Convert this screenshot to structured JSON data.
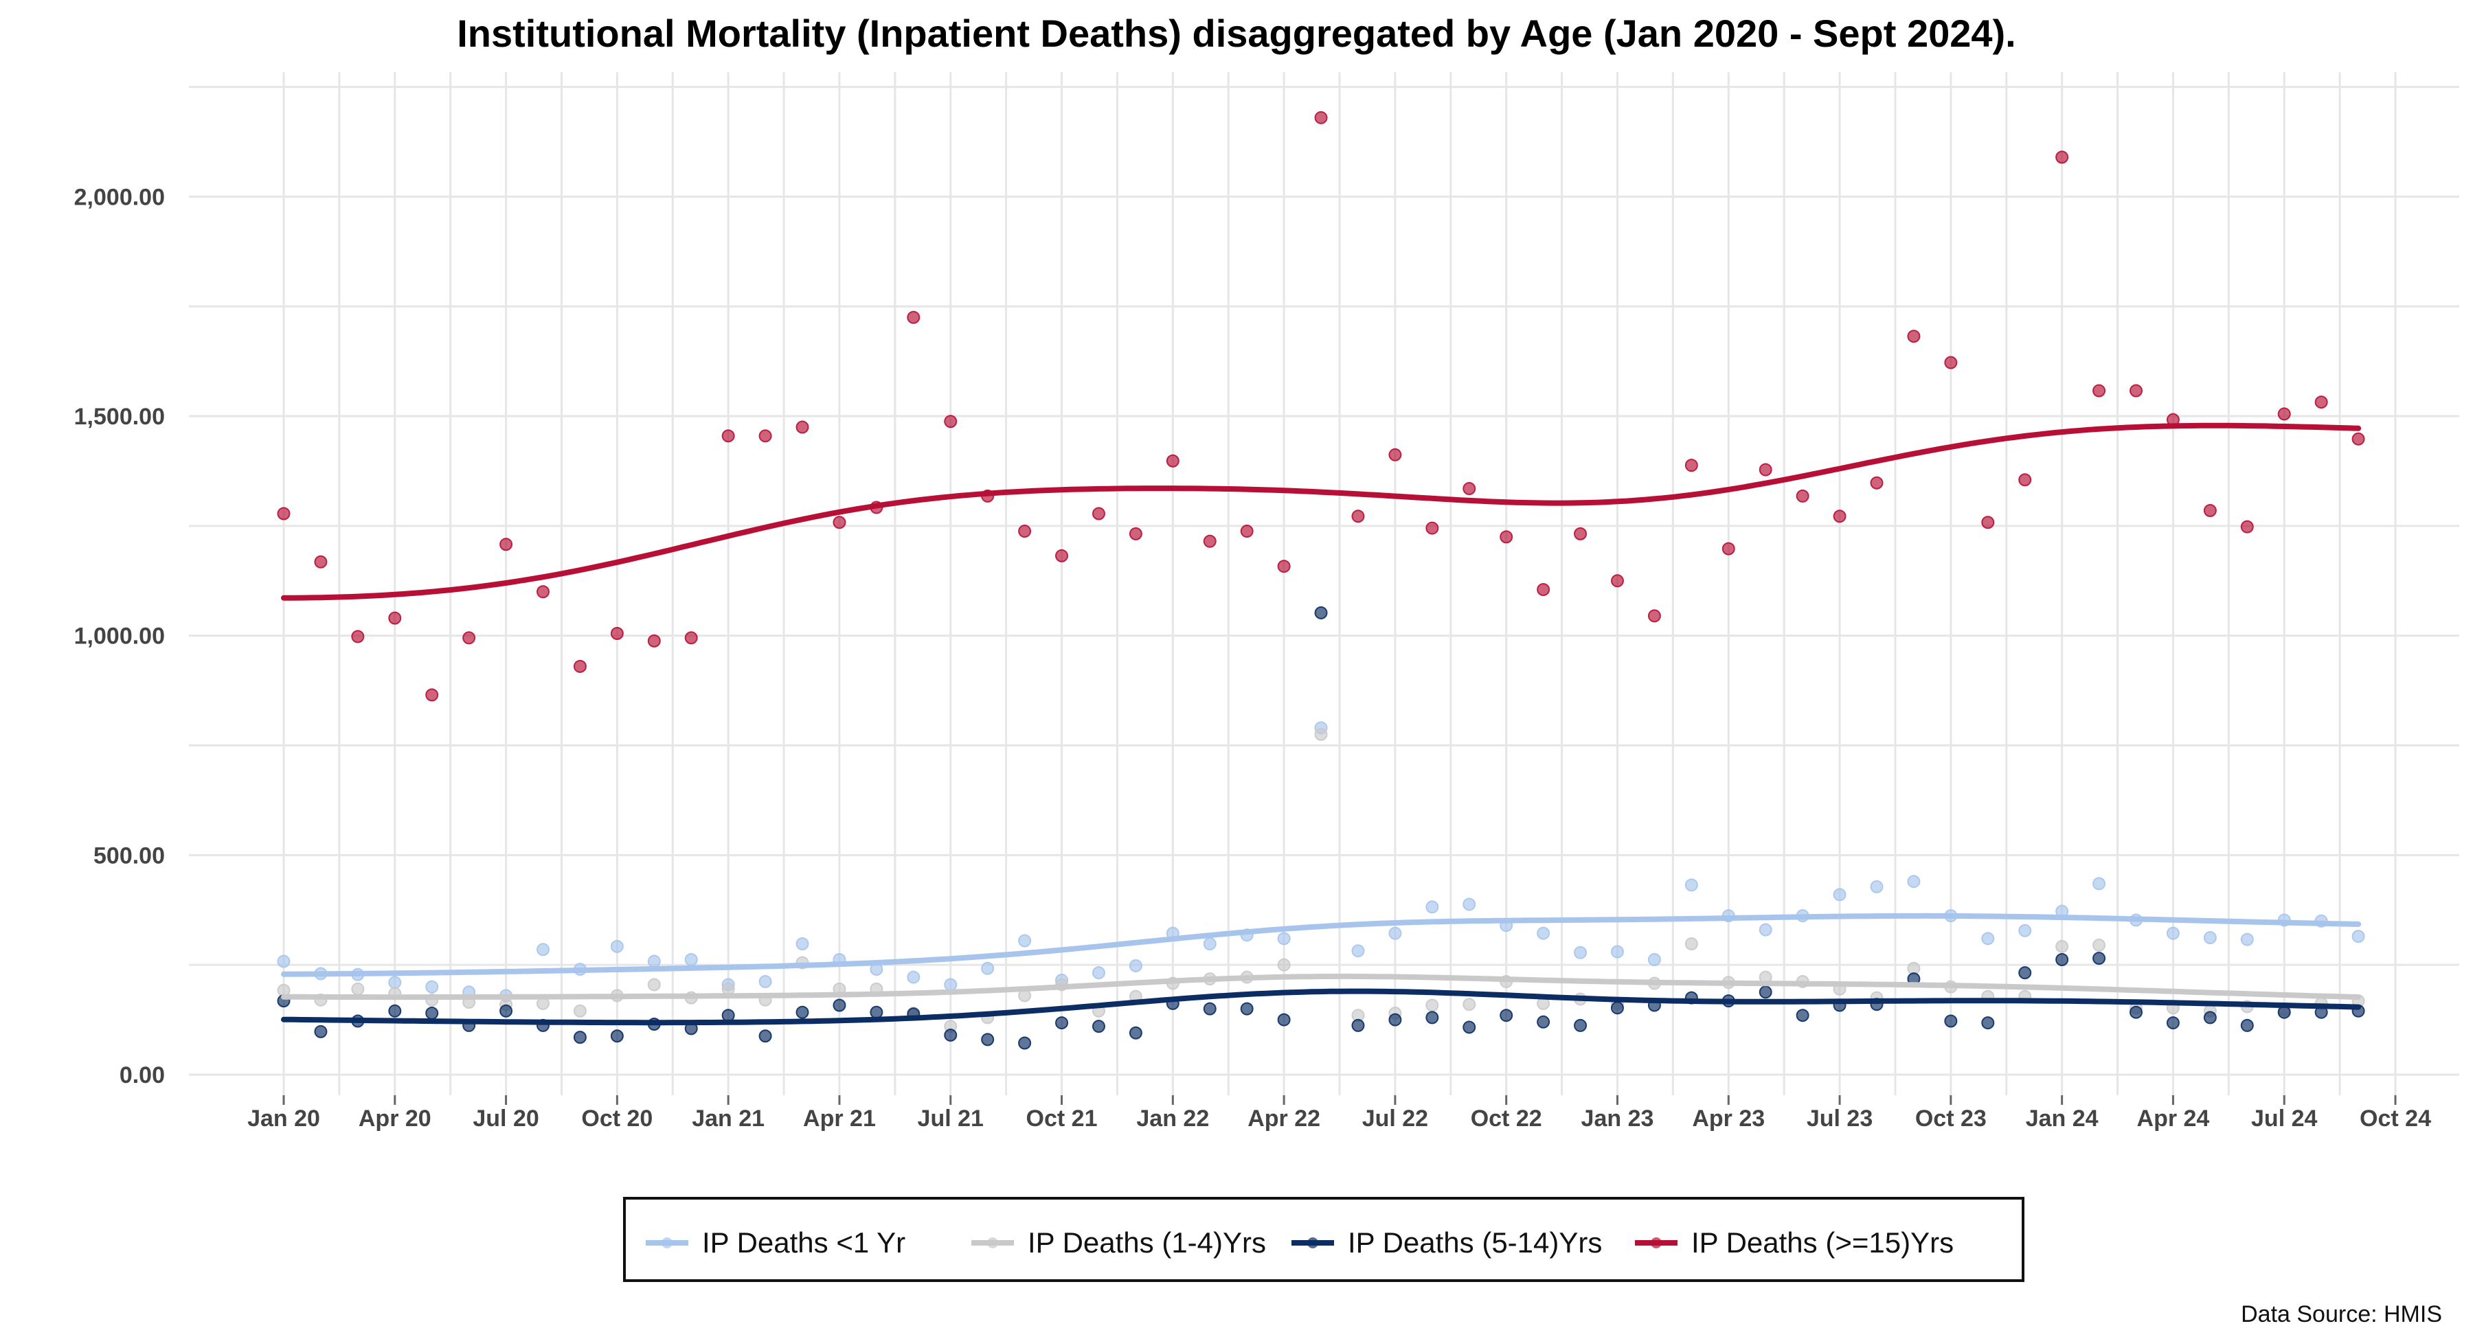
{
  "chart_data": {
    "type": "scatter",
    "title": "Institutional Mortality (Inpatient Deaths) disaggregated by Age (Jan 2020 - Sept 2024).",
    "source_note": "Data Source: HMIS",
    "xlabel": "",
    "ylabel": "",
    "x_start": "2020-01",
    "x_ticks": [
      "Jan 20",
      "Apr 20",
      "Jul 20",
      "Oct 20",
      "Jan 21",
      "Apr 21",
      "Jul 21",
      "Oct 21",
      "Jan 22",
      "Apr 22",
      "Jul 22",
      "Oct 22",
      "Jan 23",
      "Apr 23",
      "Jul 23",
      "Oct 23",
      "Jan 24",
      "Apr 24",
      "Jul 24",
      "Oct 24"
    ],
    "ylim": [
      0,
      2250
    ],
    "y_ticks": [
      0,
      500,
      1000,
      1500,
      2000
    ],
    "y_tick_labels": [
      "0.00",
      "500.00",
      "1,000.00",
      "1,500.00",
      "2,000.00"
    ],
    "grid": true,
    "legend_position": "bottom",
    "smooth_trend_lines": true,
    "series": [
      {
        "name": "IP Deaths <1 Yr",
        "color": "#a7c4ec",
        "values": [
          258,
          230,
          228,
          210,
          200,
          188,
          180,
          285,
          240,
          292,
          258,
          262,
          205,
          212,
          298,
          262,
          240,
          222,
          205,
          242,
          305,
          215,
          232,
          248,
          322,
          298,
          318,
          310,
          790,
          282,
          322,
          382,
          388,
          340,
          322,
          278,
          280,
          262,
          432,
          362,
          330,
          362,
          410,
          428,
          440,
          362,
          310,
          328,
          372,
          435,
          352,
          322,
          312,
          308,
          352,
          350,
          315
        ]
      },
      {
        "name": "IP Deaths (1-4)Yrs",
        "color": "#c9c9c9",
        "values": [
          192,
          170,
          195,
          185,
          170,
          165,
          160,
          162,
          145,
          180,
          205,
          175,
          195,
          170,
          255,
          195,
          195,
          140,
          110,
          130,
          180,
          205,
          145,
          178,
          208,
          218,
          222,
          250,
          775,
          135,
          140,
          158,
          160,
          212,
          162,
          172,
          162,
          208,
          298,
          210,
          222,
          212,
          195,
          175,
          242,
          200,
          178,
          178,
          292,
          295,
          152,
          152,
          145,
          155,
          148,
          162,
          168
        ]
      },
      {
        "name": "IP Deaths (5-14)Yrs",
        "color": "#0b2d63",
        "values": [
          168,
          98,
          122,
          145,
          140,
          112,
          145,
          112,
          85,
          88,
          115,
          105,
          135,
          88,
          142,
          158,
          142,
          138,
          90,
          80,
          72,
          118,
          110,
          95,
          162,
          150,
          150,
          125,
          1052,
          112,
          125,
          130,
          108,
          135,
          120,
          112,
          152,
          158,
          175,
          168,
          188,
          135,
          158,
          160,
          218,
          122,
          118,
          232,
          262,
          265,
          142,
          118,
          130,
          112,
          142,
          142,
          145
        ]
      },
      {
        "name": "IP Deaths  (>=15)Yrs",
        "color": "#b70f35",
        "values": [
          1278,
          1168,
          998,
          1040,
          865,
          995,
          1208,
          1100,
          930,
          1005,
          988,
          995,
          1455,
          1455,
          1475,
          1258,
          1292,
          1725,
          1488,
          1318,
          1238,
          1182,
          1278,
          1232,
          1398,
          1215,
          1238,
          1158,
          2180,
          1272,
          1412,
          1245,
          1335,
          1225,
          1105,
          1232,
          1125,
          1045,
          1388,
          1198,
          1378,
          1318,
          1272,
          1348,
          1682,
          1622,
          1258,
          1355,
          2090,
          1558,
          1558,
          1492,
          1285,
          1248,
          1505,
          1532,
          1448
        ]
      }
    ]
  }
}
